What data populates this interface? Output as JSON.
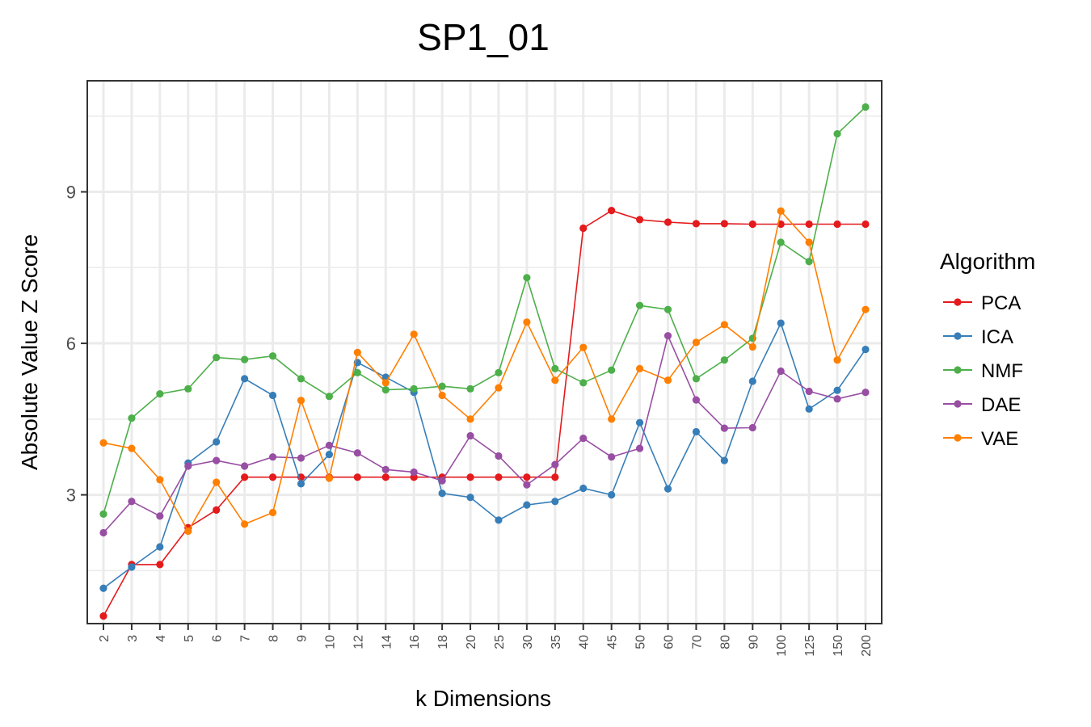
{
  "chart_data": {
    "type": "line",
    "title": "SP1_01",
    "xlabel": "k Dimensions",
    "ylabel": "Absolute Value Z Score",
    "categories": [
      "2",
      "3",
      "4",
      "5",
      "6",
      "7",
      "8",
      "9",
      "10",
      "12",
      "14",
      "16",
      "18",
      "20",
      "25",
      "30",
      "35",
      "40",
      "45",
      "50",
      "60",
      "70",
      "80",
      "90",
      "100",
      "125",
      "150",
      "200"
    ],
    "ylim": [
      0.45,
      11.2
    ],
    "yticks": [
      3,
      6,
      9
    ],
    "grid": true,
    "legend": {
      "title": "Algorithm",
      "position": "right"
    },
    "series": [
      {
        "name": "PCA",
        "color": "#e41a1c",
        "values": [
          0.6,
          1.62,
          1.62,
          2.35,
          2.7,
          3.35,
          3.35,
          3.35,
          3.35,
          3.35,
          3.35,
          3.35,
          3.35,
          3.35,
          3.35,
          3.35,
          3.35,
          8.28,
          8.63,
          8.45,
          8.4,
          8.37,
          8.37,
          8.36,
          8.36,
          8.36,
          8.36,
          8.36
        ]
      },
      {
        "name": "ICA",
        "color": "#377eb8",
        "values": [
          1.15,
          1.57,
          1.97,
          3.63,
          4.05,
          5.3,
          4.97,
          3.22,
          3.8,
          5.62,
          5.33,
          5.03,
          3.03,
          2.95,
          2.5,
          2.8,
          2.87,
          3.13,
          3.0,
          4.43,
          3.12,
          4.25,
          3.68,
          5.25,
          6.4,
          4.7,
          5.07,
          5.88
        ]
      },
      {
        "name": "NMF",
        "color": "#4daf4a",
        "values": [
          2.62,
          4.52,
          5.0,
          5.1,
          5.72,
          5.68,
          5.75,
          5.3,
          4.95,
          5.42,
          5.08,
          5.1,
          5.15,
          5.1,
          5.42,
          7.3,
          5.5,
          5.22,
          5.47,
          6.75,
          6.67,
          5.3,
          5.67,
          6.1,
          8.0,
          7.62,
          10.15,
          10.68
        ]
      },
      {
        "name": "DAE",
        "color": "#984ea3",
        "values": [
          2.25,
          2.87,
          2.58,
          3.57,
          3.68,
          3.57,
          3.75,
          3.73,
          3.98,
          3.83,
          3.5,
          3.45,
          3.28,
          4.17,
          3.77,
          3.2,
          3.6,
          4.12,
          3.75,
          3.92,
          6.15,
          4.88,
          4.32,
          4.33,
          5.45,
          5.05,
          4.9,
          5.03
        ]
      },
      {
        "name": "VAE",
        "color": "#ff7f00",
        "values": [
          4.03,
          3.92,
          3.3,
          2.28,
          3.25,
          2.42,
          2.65,
          4.87,
          3.33,
          5.82,
          5.22,
          6.18,
          4.97,
          4.5,
          5.12,
          6.42,
          5.27,
          5.92,
          4.5,
          5.5,
          5.27,
          6.02,
          6.37,
          5.93,
          8.62,
          8.0,
          5.67,
          6.67
        ]
      }
    ]
  }
}
